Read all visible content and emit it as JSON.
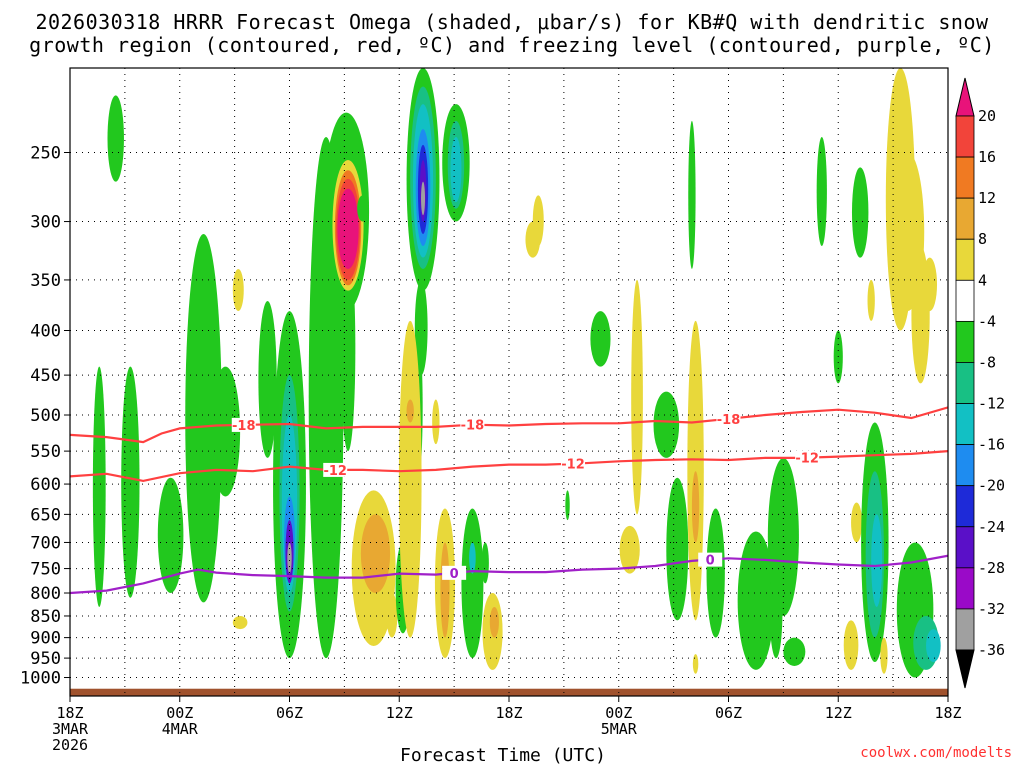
{
  "title": {
    "line1": "2026030318 HRRR Forecast Omega (shaded, μbar/s) for KB#Q with dendritic snow",
    "line2": "growth region (contoured, red, ºC) and freezing level (contoured, purple, ºC)"
  },
  "credit": "coolwx.com/modelts",
  "chart_data": {
    "type": "heatmap",
    "title": "2026030318 HRRR Forecast Omega (shaded, μbar/s) for KB#Q with dendritic snow growth region (contoured, red, ºC) and freezing level (contoured, purple, ºC)",
    "xlabel": "Forecast Time (UTC)",
    "ylabel": "",
    "x_unit": "forecast hour",
    "xlim": [
      0,
      48
    ],
    "ylim_hpa": [
      1050,
      200
    ],
    "y_scale": "log-pressure",
    "x_ticks": [
      {
        "hour": 0,
        "lines": [
          "18Z",
          "3MAR",
          "2026"
        ]
      },
      {
        "hour": 6,
        "lines": [
          "00Z",
          "4MAR"
        ]
      },
      {
        "hour": 12,
        "lines": [
          "06Z"
        ]
      },
      {
        "hour": 18,
        "lines": [
          "12Z"
        ]
      },
      {
        "hour": 24,
        "lines": [
          "18Z"
        ]
      },
      {
        "hour": 30,
        "lines": [
          "00Z",
          "5MAR"
        ]
      },
      {
        "hour": 36,
        "lines": [
          "06Z"
        ]
      },
      {
        "hour": 42,
        "lines": [
          "12Z"
        ]
      },
      {
        "hour": 48,
        "lines": [
          "18Z"
        ]
      }
    ],
    "y_ticks": [
      250,
      300,
      350,
      400,
      450,
      500,
      550,
      600,
      650,
      700,
      750,
      800,
      850,
      900,
      950,
      1000
    ],
    "grid": true,
    "colorbar": {
      "labels": [
        "20",
        "16",
        "12",
        "8",
        "4",
        "-4",
        "-8",
        "-12",
        "-16",
        "-20",
        "-24",
        "-28",
        "-32",
        "-36"
      ],
      "levels": [
        {
          "lo": 20,
          "hi": null,
          "color": "#e8137a"
        },
        {
          "lo": 16,
          "hi": 20,
          "color": "#f2443a"
        },
        {
          "lo": 12,
          "hi": 16,
          "color": "#f07a22"
        },
        {
          "lo": 8,
          "hi": 12,
          "color": "#e8a832"
        },
        {
          "lo": 4,
          "hi": 8,
          "color": "#e8d83a"
        },
        {
          "lo": -4,
          "hi": 4,
          "color": "#ffffff"
        },
        {
          "lo": -8,
          "hi": -4,
          "color": "#22c81e"
        },
        {
          "lo": -12,
          "hi": -8,
          "color": "#18c084"
        },
        {
          "lo": -16,
          "hi": -12,
          "color": "#12c0c4"
        },
        {
          "lo": -20,
          "hi": -16,
          "color": "#1e8cf0"
        },
        {
          "lo": -24,
          "hi": -20,
          "color": "#1e2ad8"
        },
        {
          "lo": -28,
          "hi": -24,
          "color": "#5a10c8"
        },
        {
          "lo": -32,
          "hi": -28,
          "color": "#9a0ac8"
        },
        {
          "lo": -36,
          "hi": -32,
          "color": "#a0a0a0"
        },
        {
          "lo": null,
          "hi": -36,
          "color": "#000000"
        }
      ]
    },
    "omega_features": [
      {
        "h": 1.6,
        "p0": 440,
        "p1": 830,
        "w": 0.35,
        "color": "#22c81e"
      },
      {
        "h": 2.5,
        "p0": 215,
        "p1": 270,
        "w": 0.45,
        "color": "#22c81e"
      },
      {
        "h": 3.3,
        "p0": 440,
        "p1": 810,
        "w": 0.5,
        "color": "#22c81e"
      },
      {
        "h": 5.5,
        "p0": 590,
        "p1": 800,
        "w": 0.7,
        "color": "#22c81e"
      },
      {
        "h": 7.3,
        "p0": 310,
        "p1": 820,
        "w": 1.0,
        "color": "#22c81e"
      },
      {
        "h": 8.5,
        "p0": 440,
        "p1": 620,
        "w": 0.8,
        "color": "#22c81e"
      },
      {
        "h": 9.2,
        "p0": 340,
        "p1": 380,
        "w": 0.3,
        "color": "#e8d83a"
      },
      {
        "h": 9.3,
        "p0": 850,
        "p1": 880,
        "w": 0.4,
        "color": "#e8d83a"
      },
      {
        "h": 10.8,
        "p0": 370,
        "p1": 560,
        "w": 0.5,
        "color": "#22c81e"
      },
      {
        "h": 12.0,
        "p0": 380,
        "p1": 950,
        "w": 0.9,
        "color": "#22c81e"
      },
      {
        "h": 12.0,
        "p0": 450,
        "p1": 840,
        "w": 0.55,
        "color": "#18c084"
      },
      {
        "h": 12.0,
        "p0": 500,
        "p1": 800,
        "w": 0.42,
        "color": "#12c0c4"
      },
      {
        "h": 12.0,
        "p0": 620,
        "p1": 780,
        "w": 0.3,
        "color": "#1e8cf0"
      },
      {
        "h": 12.0,
        "p0": 660,
        "p1": 780,
        "w": 0.22,
        "color": "#5a10c8"
      },
      {
        "h": 12.0,
        "p0": 700,
        "p1": 760,
        "w": 0.12,
        "color": "#a0a0a0"
      },
      {
        "h": 14.0,
        "p0": 240,
        "p1": 950,
        "w": 0.95,
        "color": "#22c81e"
      },
      {
        "h": 15.2,
        "p0": 320,
        "p1": 550,
        "w": 0.4,
        "color": "#22c81e"
      },
      {
        "h": 15.1,
        "p0": 225,
        "p1": 380,
        "w": 1.25,
        "color": "#22c81e"
      },
      {
        "h": 15.2,
        "p0": 255,
        "p1": 360,
        "w": 0.85,
        "color": "#e8d83a"
      },
      {
        "h": 15.2,
        "p0": 262,
        "p1": 355,
        "w": 0.72,
        "color": "#f07a22"
      },
      {
        "h": 15.2,
        "p0": 268,
        "p1": 350,
        "w": 0.65,
        "color": "#f2443a"
      },
      {
        "h": 15.2,
        "p0": 275,
        "p1": 340,
        "w": 0.58,
        "color": "#e8137a"
      },
      {
        "h": 16.0,
        "p0": 280,
        "p1": 300,
        "w": 0.3,
        "color": "#22c81e"
      },
      {
        "h": 16.6,
        "p0": 610,
        "p1": 920,
        "w": 1.2,
        "color": "#e8d83a"
      },
      {
        "h": 16.7,
        "p0": 650,
        "p1": 800,
        "w": 0.8,
        "color": "#e8a832"
      },
      {
        "h": 17.6,
        "p0": 800,
        "p1": 900,
        "w": 0.3,
        "color": "#e8d83a"
      },
      {
        "h": 18.2,
        "p0": 700,
        "p1": 890,
        "w": 0.4,
        "color": "#22c81e"
      },
      {
        "h": 18.3,
        "p0": 470,
        "p1": 510,
        "w": 0.22,
        "color": "#22c81e"
      },
      {
        "h": 18.5,
        "p0": 740,
        "p1": 830,
        "w": 0.2,
        "color": "#1e8cf0"
      },
      {
        "h": 19.2,
        "p0": 350,
        "p1": 450,
        "w": 0.35,
        "color": "#22c81e"
      },
      {
        "h": 19.0,
        "p0": 400,
        "p1": 600,
        "w": 0.28,
        "color": "#22c81e"
      },
      {
        "h": 18.6,
        "p0": 390,
        "p1": 900,
        "w": 0.62,
        "color": "#e8d83a"
      },
      {
        "h": 18.6,
        "p0": 480,
        "p1": 510,
        "w": 0.2,
        "color": "#e8a832"
      },
      {
        "h": 19.3,
        "p0": 200,
        "p1": 360,
        "w": 0.9,
        "color": "#22c81e"
      },
      {
        "h": 19.3,
        "p0": 210,
        "p1": 340,
        "w": 0.7,
        "color": "#18c084"
      },
      {
        "h": 19.3,
        "p0": 220,
        "p1": 330,
        "w": 0.55,
        "color": "#12c0c4"
      },
      {
        "h": 19.3,
        "p0": 235,
        "p1": 320,
        "w": 0.4,
        "color": "#1e8cf0"
      },
      {
        "h": 19.3,
        "p0": 245,
        "p1": 310,
        "w": 0.28,
        "color": "#1e2ad8"
      },
      {
        "h": 19.3,
        "p0": 255,
        "p1": 300,
        "w": 0.18,
        "color": "#5a10c8"
      },
      {
        "h": 19.3,
        "p0": 270,
        "p1": 295,
        "w": 0.1,
        "color": "#a0a0a0"
      },
      {
        "h": 20.0,
        "p0": 480,
        "p1": 540,
        "w": 0.2,
        "color": "#e8d83a"
      },
      {
        "h": 21.1,
        "p0": 220,
        "p1": 300,
        "w": 0.75,
        "color": "#22c81e"
      },
      {
        "h": 21.1,
        "p0": 230,
        "p1": 290,
        "w": 0.45,
        "color": "#18c084"
      },
      {
        "h": 21.1,
        "p0": 240,
        "p1": 285,
        "w": 0.3,
        "color": "#12c0c4"
      },
      {
        "h": 20.5,
        "p0": 640,
        "p1": 950,
        "w": 0.55,
        "color": "#e8d83a"
      },
      {
        "h": 20.5,
        "p0": 700,
        "p1": 900,
        "w": 0.25,
        "color": "#e8a832"
      },
      {
        "h": 22.0,
        "p0": 640,
        "p1": 950,
        "w": 0.6,
        "color": "#22c81e"
      },
      {
        "h": 22.0,
        "p0": 700,
        "p1": 760,
        "w": 0.18,
        "color": "#12c0c4"
      },
      {
        "h": 23.1,
        "p0": 800,
        "p1": 980,
        "w": 0.55,
        "color": "#e8d83a"
      },
      {
        "h": 23.2,
        "p0": 830,
        "p1": 900,
        "w": 0.25,
        "color": "#e8a832"
      },
      {
        "h": 22.7,
        "p0": 700,
        "p1": 780,
        "w": 0.2,
        "color": "#22c81e"
      },
      {
        "h": 25.3,
        "p0": 300,
        "p1": 330,
        "w": 0.4,
        "color": "#e8d83a"
      },
      {
        "h": 25.6,
        "p0": 280,
        "p1": 320,
        "w": 0.3,
        "color": "#e8d83a"
      },
      {
        "h": 27.2,
        "p0": 610,
        "p1": 660,
        "w": 0.12,
        "color": "#22c81e"
      },
      {
        "h": 29.0,
        "p0": 380,
        "p1": 440,
        "w": 0.55,
        "color": "#22c81e"
      },
      {
        "h": 30.6,
        "p0": 670,
        "p1": 760,
        "w": 0.55,
        "color": "#e8d83a"
      },
      {
        "h": 31.0,
        "p0": 350,
        "p1": 650,
        "w": 0.32,
        "color": "#e8d83a"
      },
      {
        "h": 32.6,
        "p0": 470,
        "p1": 560,
        "w": 0.7,
        "color": "#22c81e"
      },
      {
        "h": 33.2,
        "p0": 590,
        "p1": 860,
        "w": 0.6,
        "color": "#22c81e"
      },
      {
        "h": 34.2,
        "p0": 390,
        "p1": 860,
        "w": 0.45,
        "color": "#e8d83a"
      },
      {
        "h": 34.0,
        "p0": 230,
        "p1": 340,
        "w": 0.2,
        "color": "#22c81e"
      },
      {
        "h": 34.2,
        "p0": 580,
        "p1": 700,
        "w": 0.2,
        "color": "#e8a832"
      },
      {
        "h": 34.2,
        "p0": 940,
        "p1": 990,
        "w": 0.15,
        "color": "#e8d83a"
      },
      {
        "h": 35.3,
        "p0": 640,
        "p1": 900,
        "w": 0.5,
        "color": "#22c81e"
      },
      {
        "h": 37.5,
        "p0": 680,
        "p1": 980,
        "w": 1.0,
        "color": "#22c81e"
      },
      {
        "h": 39.0,
        "p0": 560,
        "p1": 850,
        "w": 0.85,
        "color": "#22c81e"
      },
      {
        "h": 38.6,
        "p0": 740,
        "p1": 950,
        "w": 0.35,
        "color": "#22c81e"
      },
      {
        "h": 39.6,
        "p0": 900,
        "p1": 970,
        "w": 0.6,
        "color": "#22c81e"
      },
      {
        "h": 41.1,
        "p0": 240,
        "p1": 320,
        "w": 0.28,
        "color": "#22c81e"
      },
      {
        "h": 42.0,
        "p0": 400,
        "p1": 460,
        "w": 0.25,
        "color": "#22c81e"
      },
      {
        "h": 42.7,
        "p0": 860,
        "p1": 980,
        "w": 0.4,
        "color": "#e8d83a"
      },
      {
        "h": 43.0,
        "p0": 630,
        "p1": 700,
        "w": 0.3,
        "color": "#e8d83a"
      },
      {
        "h": 43.2,
        "p0": 260,
        "p1": 330,
        "w": 0.45,
        "color": "#22c81e"
      },
      {
        "h": 43.8,
        "p0": 350,
        "p1": 390,
        "w": 0.2,
        "color": "#e8d83a"
      },
      {
        "h": 44.0,
        "p0": 510,
        "p1": 960,
        "w": 0.75,
        "color": "#22c81e"
      },
      {
        "h": 44.0,
        "p0": 580,
        "p1": 900,
        "w": 0.5,
        "color": "#18c084"
      },
      {
        "h": 44.1,
        "p0": 650,
        "p1": 830,
        "w": 0.3,
        "color": "#12c0c4"
      },
      {
        "h": 44.5,
        "p0": 900,
        "p1": 990,
        "w": 0.2,
        "color": "#e8d83a"
      },
      {
        "h": 45.4,
        "p0": 200,
        "p1": 400,
        "w": 0.8,
        "color": "#e8d83a"
      },
      {
        "h": 45.8,
        "p0": 250,
        "p1": 380,
        "w": 0.9,
        "color": "#e8d83a"
      },
      {
        "h": 46.5,
        "p0": 320,
        "p1": 460,
        "w": 0.5,
        "color": "#e8d83a"
      },
      {
        "h": 47.0,
        "p0": 330,
        "p1": 380,
        "w": 0.4,
        "color": "#e8d83a"
      },
      {
        "h": 46.2,
        "p0": 700,
        "p1": 1000,
        "w": 1.0,
        "color": "#22c81e"
      },
      {
        "h": 46.8,
        "p0": 850,
        "p1": 980,
        "w": 0.7,
        "color": "#18c084"
      },
      {
        "h": 47.2,
        "p0": 880,
        "p1": 960,
        "w": 0.4,
        "color": "#12c0c4"
      }
    ],
    "contours": [
      {
        "label": "-18",
        "color": "#ff4040",
        "points": [
          [
            0,
            527
          ],
          [
            2,
            530
          ],
          [
            4,
            537
          ],
          [
            5,
            525
          ],
          [
            6,
            518
          ],
          [
            8,
            514
          ],
          [
            10,
            513
          ],
          [
            12,
            512
          ],
          [
            14,
            518
          ],
          [
            16,
            516
          ],
          [
            18,
            516
          ],
          [
            20,
            516
          ],
          [
            22,
            513
          ],
          [
            24,
            514
          ],
          [
            26,
            512
          ],
          [
            28,
            511
          ],
          [
            30,
            511
          ],
          [
            32,
            508
          ],
          [
            34,
            510
          ],
          [
            36,
            505
          ],
          [
            38,
            500
          ],
          [
            40,
            496
          ],
          [
            42,
            493
          ],
          [
            44,
            497
          ],
          [
            46,
            504
          ],
          [
            48,
            490
          ]
        ]
      },
      {
        "label": "-12",
        "color": "#ff4040",
        "points": [
          [
            0,
            588
          ],
          [
            2,
            584
          ],
          [
            4,
            595
          ],
          [
            6,
            583
          ],
          [
            8,
            578
          ],
          [
            10,
            580
          ],
          [
            12,
            573
          ],
          [
            14,
            578
          ],
          [
            16,
            578
          ],
          [
            18,
            580
          ],
          [
            20,
            578
          ],
          [
            22,
            573
          ],
          [
            24,
            570
          ],
          [
            26,
            570
          ],
          [
            28,
            568
          ],
          [
            30,
            565
          ],
          [
            32,
            563
          ],
          [
            34,
            562
          ],
          [
            36,
            563
          ],
          [
            38,
            560
          ],
          [
            40,
            560
          ],
          [
            42,
            558
          ],
          [
            44,
            556
          ],
          [
            46,
            554
          ],
          [
            48,
            550
          ]
        ]
      },
      {
        "label": "0",
        "color": "#a020c8",
        "points": [
          [
            0,
            800
          ],
          [
            2,
            795
          ],
          [
            4,
            780
          ],
          [
            6,
            760
          ],
          [
            7,
            752
          ],
          [
            8,
            758
          ],
          [
            10,
            763
          ],
          [
            12,
            765
          ],
          [
            14,
            768
          ],
          [
            16,
            768
          ],
          [
            18,
            760
          ],
          [
            20,
            762
          ],
          [
            22,
            755
          ],
          [
            24,
            757
          ],
          [
            26,
            757
          ],
          [
            28,
            752
          ],
          [
            30,
            750
          ],
          [
            32,
            745
          ],
          [
            34,
            735
          ],
          [
            36,
            730
          ],
          [
            38,
            733
          ],
          [
            40,
            738
          ],
          [
            42,
            742
          ],
          [
            44,
            745
          ],
          [
            46,
            738
          ],
          [
            48,
            725
          ]
        ]
      }
    ],
    "contour_label_positions": [
      {
        "label": "-18",
        "hour": 9.5
      },
      {
        "label": "-18",
        "hour": 22.0
      },
      {
        "label": "-18",
        "hour": 36.0
      },
      {
        "label": "-12",
        "hour": 14.5
      },
      {
        "label": "-12",
        "hour": 27.5
      },
      {
        "label": "-12",
        "hour": 40.3
      },
      {
        "label": "0",
        "hour": 21.0
      },
      {
        "label": "0",
        "hour": 35.0
      }
    ],
    "terrain_color": "#a0522d",
    "terrain_top_hpa": 1030
  }
}
